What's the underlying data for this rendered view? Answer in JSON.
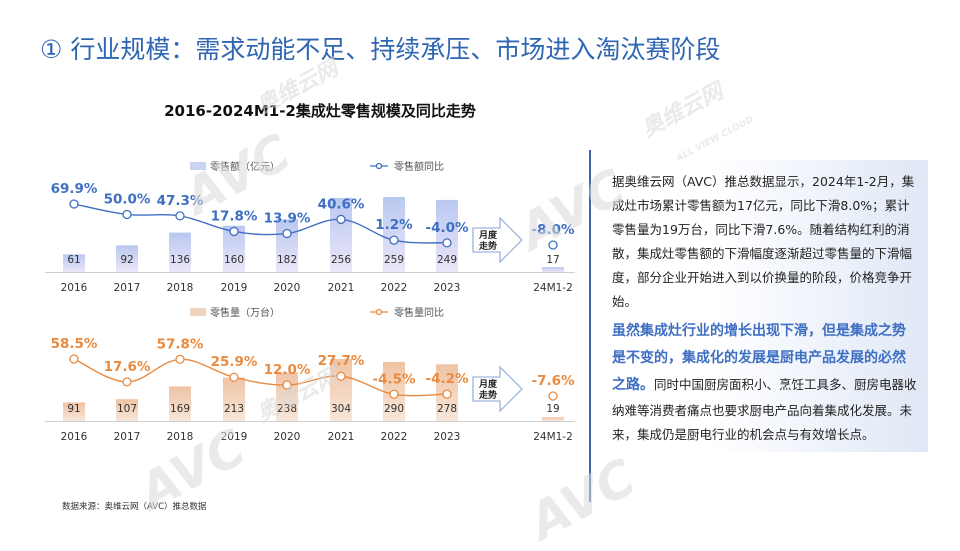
{
  "page_title": "① 行业规模：需求动能不足、持续承压、市场进入淘汰赛阶段",
  "watermarks": [
    "AVC",
    "奥维云网",
    "ALL VIEW CLOUD"
  ],
  "source": "数据来源：奥维云网（AVC）推总数据",
  "textbox": {
    "para1": "据奥维云网（AVC）推总数据显示，2024年1-2月，集成灶市场累计零售额为17亿元，同比下滑8.0%；累计零售量为19万台，同比下滑7.6%。随着结构红利的消散，集成灶零售额的下滑幅度逐渐超过零售量的下滑幅度，部分企业开始进入到以价换量的阶段，价格竞争开始。",
    "highlight": "虽然集成灶行业的增长出现下滑，但是集成之势是不变的，集成化的发展是厨电产品发展的必然之路。",
    "para2": "同时中国厨房面积小、烹饪工具多、厨房电器收纳难等消费者痛点也要求厨电产品向着集成化发展。未来，集成仍是厨电行业的机会点与有效增长点。"
  },
  "chart_data": [
    {
      "type": "bar+line",
      "title": "2016-2024M1-2集成灶零售规模及同比走势",
      "categories": [
        "2016",
        "2017",
        "2018",
        "2019",
        "2020",
        "2021",
        "2022",
        "2023"
      ],
      "extra_category": "24M1-2",
      "bar_series": {
        "name": "零售额（亿元）",
        "values": [
          61,
          92,
          136,
          160,
          182,
          256,
          259,
          249
        ],
        "extra_value": 17,
        "color": "#c8d4f2"
      },
      "line_series": {
        "name": "零售额同比",
        "values": [
          69.9,
          50.0,
          47.3,
          17.8,
          13.9,
          40.6,
          1.2,
          -4.0
        ],
        "labels": [
          "69.9%",
          "50.0%",
          "47.3%",
          "17.8%",
          "13.9%",
          "40.6%",
          "1.2%",
          "-4.0%"
        ],
        "extra_value": -8.0,
        "extra_label": "-8.0%",
        "color": "#3f6fc3"
      },
      "arrow_label": [
        "月度",
        "走势"
      ]
    },
    {
      "type": "bar+line",
      "categories": [
        "2016",
        "2017",
        "2018",
        "2019",
        "2020",
        "2021",
        "2022",
        "2023"
      ],
      "extra_category": "24M1-2",
      "bar_series": {
        "name": "零售量（万台）",
        "values": [
          91,
          107,
          169,
          213,
          238,
          304,
          290,
          278
        ],
        "extra_value": 19,
        "color": "#f1d2bd"
      },
      "line_series": {
        "name": "零售量同比",
        "values": [
          58.5,
          17.6,
          57.8,
          25.9,
          12.0,
          27.7,
          -4.5,
          -4.2
        ],
        "labels": [
          "58.5%",
          "17.6%",
          "57.8%",
          "25.9%",
          "12.0%",
          "27.7%",
          "-4.5%",
          "-4.2%"
        ],
        "extra_value": -7.6,
        "extra_label": "-7.6%",
        "color": "#e98a3f"
      },
      "arrow_label": [
        "月度",
        "走势"
      ]
    }
  ]
}
